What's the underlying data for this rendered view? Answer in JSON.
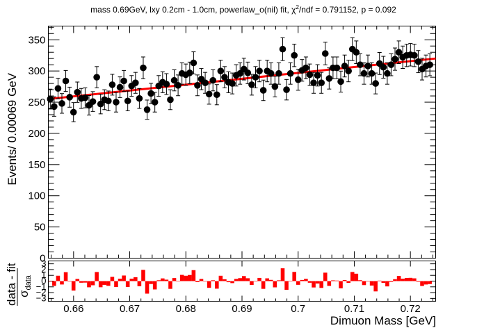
{
  "chart_data": {
    "type": "scatter",
    "title": "mass 0.69GeV, lxy 0.2cm - 1.0cm, powerlaw_o(nil) fit, χ²/ndf = 0.791152, p = 0.092",
    "title_parts": {
      "pre": "mass 0.69GeV, lxy 0.2cm - 1.0cm, powerlaw_o(nil) fit, χ",
      "sup": "2",
      "post": "/ndf = 0.791152, p = 0.092"
    },
    "xlabel": "Dimuon Mass [GeV]",
    "ylabel": "Events/ 0.00069 GeV",
    "ratio_ylabel_num": "data - fit",
    "ratio_ylabel_den": "σ",
    "ratio_ylabel_den_sub": "data",
    "xlim": [
      0.6555,
      0.7245
    ],
    "ylim": [
      0,
      372
    ],
    "ratio_ylim": [
      -3.5,
      3.5
    ],
    "x_ticks": [
      0.66,
      0.67,
      0.68,
      0.69,
      0.7,
      0.71,
      0.72
    ],
    "x_tick_labels": [
      "0.66",
      "0.67",
      "0.68",
      "0.69",
      "0.7",
      "0.71",
      "0.72"
    ],
    "y_ticks": [
      0,
      50,
      100,
      150,
      200,
      250,
      300,
      350
    ],
    "y_tick_labels": [
      "0",
      "50",
      "100",
      "150",
      "200",
      "250",
      "300",
      "350"
    ],
    "ratio_y_ticks": [
      -3,
      -2,
      -1,
      0,
      1,
      2,
      3
    ],
    "ratio_y_tick_labels": [
      "−3",
      "−2",
      "−1",
      "0",
      "1",
      "2",
      "3"
    ],
    "bin_width": 0.00069,
    "series": [
      {
        "x_start": 0.655845,
        "values": [
          255,
          243,
          272,
          248,
          284,
          258,
          234,
          266,
          256,
          257,
          245,
          251,
          290,
          247,
          254,
          252,
          278,
          250,
          274,
          284,
          252,
          276,
          281,
          256,
          305,
          238,
          264,
          250,
          276,
          282,
          279,
          254,
          285,
          277,
          296,
          294,
          297,
          313,
          277,
          287,
          281,
          263,
          285,
          262,
          300,
          290,
          282,
          280,
          293,
          296,
          303,
          297,
          278,
          290,
          300,
          269,
          300,
          296,
          275,
          296,
          335,
          270,
          296,
          325,
          286,
          301,
          305,
          294,
          281,
          293,
          281,
          328,
          288,
          305,
          305,
          283,
          308,
          300,
          335,
          330,
          310,
          296,
          308,
          296,
          280,
          312,
          306,
          296,
          310,
          319,
          330,
          322,
          325,
          326,
          325,
          315,
          303,
          308,
          310
        ]
      },
      {
        "name": "fit",
        "color": "#ff0000",
        "x": [
          0.6555,
          0.7245
        ],
        "values": [
          255,
          320
        ]
      }
    ],
    "colors": {
      "data": "#000000",
      "fit": "#ff0000",
      "residual": "#ff0000"
    }
  }
}
